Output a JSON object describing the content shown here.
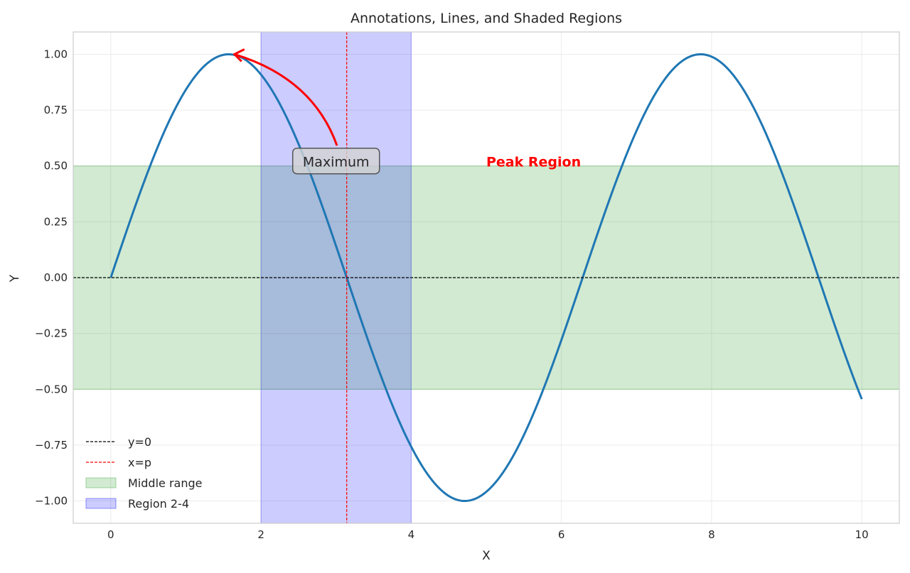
{
  "chart_data": {
    "type": "line",
    "title": "Annotations, Lines, and Shaded Regions",
    "xlabel": "X",
    "ylabel": "Y",
    "xlim": [
      -0.5,
      10.5
    ],
    "ylim": [
      -1.1,
      1.1
    ],
    "grid": true,
    "xticks": [
      0,
      2,
      4,
      6,
      8,
      10
    ],
    "xtick_labels": [
      "0",
      "2",
      "4",
      "6",
      "8",
      "10"
    ],
    "yticks": [
      1.0,
      0.75,
      0.5,
      0.25,
      0.0,
      -0.25,
      -0.5,
      -0.75,
      -1.0
    ],
    "ytick_labels": [
      "1.00",
      "0.75",
      "0.50",
      "0.25",
      "0.00",
      "−0.25",
      "−0.50",
      "−0.75",
      "−1.00"
    ],
    "series": [
      {
        "function": "sin(x)",
        "x_range": [
          0,
          10
        ],
        "color": "#1f77b4"
      }
    ],
    "hlines": [
      {
        "y": 0,
        "color": "#000000",
        "style": "dashed",
        "label": "y=0"
      }
    ],
    "vlines": [
      {
        "x": 3.14159,
        "color": "#ff0000",
        "style": "dashed",
        "label": "x=p"
      }
    ],
    "hspans": [
      {
        "y0": -0.5,
        "y1": 0.5,
        "color": "#2ca02c",
        "alpha": 0.22,
        "label": "Middle range"
      }
    ],
    "vspans": [
      {
        "x0": 2,
        "x1": 4,
        "color": "#0000ff",
        "alpha": 0.2,
        "label": "Region 2-4"
      }
    ],
    "annotations": [
      {
        "text": "Maximum",
        "xy": [
          1.5708,
          1.0
        ],
        "xytext": [
          3,
          0.5
        ],
        "arrow_color": "#ff0000",
        "box": true
      },
      {
        "text": "Peak Region",
        "x": 5,
        "y": 0.5,
        "color": "#ff0000",
        "bold": true
      }
    ],
    "legend": {
      "placement": "lower-left",
      "entries": [
        "y=0",
        "x=p",
        "Middle range",
        "Region 2-4"
      ]
    }
  }
}
